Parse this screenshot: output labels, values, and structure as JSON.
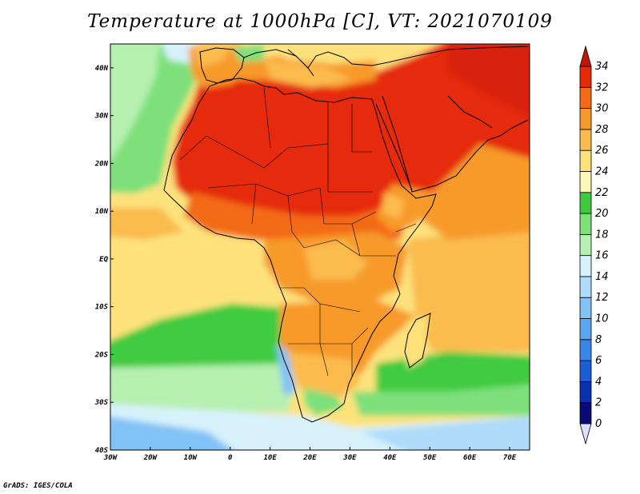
{
  "title": "Temperature at 1000hPa [C], VT: 2021070109",
  "footer": "GrADS: IGES/COLA",
  "map": {
    "lon_range": [
      -30,
      75
    ],
    "lat_range": [
      -40,
      45
    ],
    "x_ticks": [
      {
        "value": -30,
        "label": "30W"
      },
      {
        "value": -20,
        "label": "20W"
      },
      {
        "value": -10,
        "label": "10W"
      },
      {
        "value": 0,
        "label": "0"
      },
      {
        "value": 10,
        "label": "10E"
      },
      {
        "value": 20,
        "label": "20E"
      },
      {
        "value": 30,
        "label": "30E"
      },
      {
        "value": 40,
        "label": "40E"
      },
      {
        "value": 50,
        "label": "50E"
      },
      {
        "value": 60,
        "label": "60E"
      },
      {
        "value": 70,
        "label": "70E"
      }
    ],
    "y_ticks": [
      {
        "value": 40,
        "label": "40N"
      },
      {
        "value": 30,
        "label": "30N"
      },
      {
        "value": 20,
        "label": "20N"
      },
      {
        "value": 10,
        "label": "10N"
      },
      {
        "value": 0,
        "label": "EQ"
      },
      {
        "value": -10,
        "label": "10S"
      },
      {
        "value": -20,
        "label": "20S"
      },
      {
        "value": -30,
        "label": "30S"
      },
      {
        "value": -40,
        "label": "40S"
      }
    ]
  },
  "colorbar": {
    "levels": [
      "0",
      "2",
      "4",
      "6",
      "8",
      "10",
      "12",
      "14",
      "16",
      "18",
      "20",
      "22",
      "24",
      "26",
      "28",
      "30",
      "32",
      "34"
    ],
    "colors": [
      "#0b0b78",
      "#0a2fb0",
      "#1c5ed8",
      "#3a86e8",
      "#5aa6f0",
      "#82c2f6",
      "#aedcfa",
      "#d8f2fc",
      "#b6f0b0",
      "#7ee07a",
      "#3fcb3f",
      "#fff7b8",
      "#fde27c",
      "#fbbb4e",
      "#f79a2c",
      "#f36a17",
      "#e52a0a",
      "#c11805"
    ],
    "lower_arrow_color": "#dde0ff"
  }
}
